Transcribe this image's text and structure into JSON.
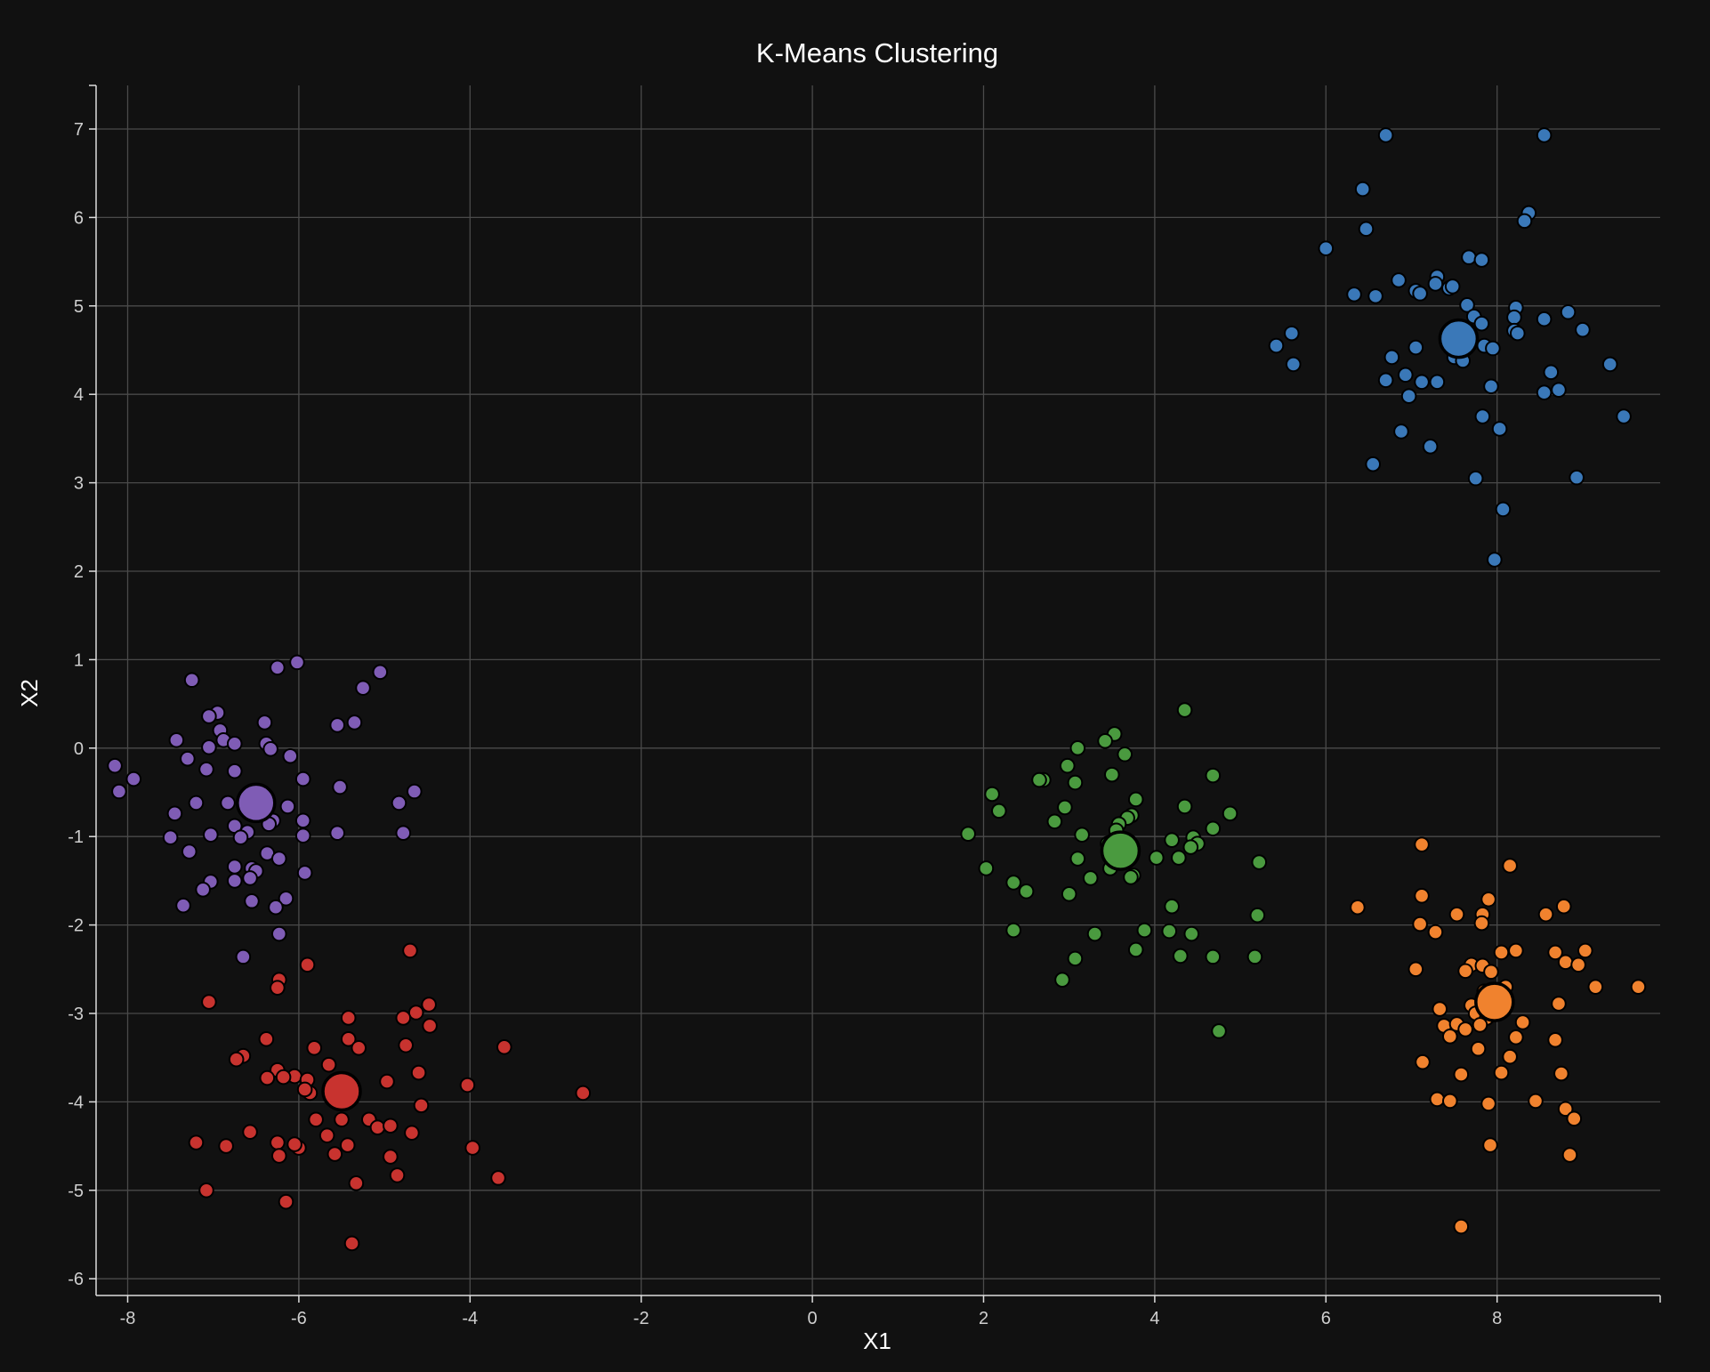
{
  "chart_data": {
    "type": "scatter",
    "title": "K-Means Clustering",
    "xlabel": "X1",
    "ylabel": "X2",
    "xlim": [
      -8.35,
      9.85
    ],
    "ylim": [
      -6.2,
      7.5
    ],
    "xticks": [
      -8,
      -6,
      -4,
      -2,
      0,
      2,
      4,
      6,
      8
    ],
    "yticks": [
      -6,
      -5,
      -4,
      -3,
      -2,
      -1,
      0,
      1,
      2,
      3,
      4,
      5,
      6,
      7
    ],
    "grid": true,
    "legend": "none",
    "clusters": [
      {
        "color": "#3a78b8",
        "centroid": [
          7.55,
          4.63
        ],
        "points": [
          [
            6.7,
            6.93
          ],
          [
            8.55,
            6.93
          ],
          [
            6.43,
            6.32
          ],
          [
            6.47,
            5.87
          ],
          [
            8.37,
            6.05
          ],
          [
            8.32,
            5.96
          ],
          [
            6.0,
            5.65
          ],
          [
            7.67,
            5.55
          ],
          [
            7.82,
            5.52
          ],
          [
            6.33,
            5.13
          ],
          [
            6.58,
            5.11
          ],
          [
            6.85,
            5.29
          ],
          [
            7.05,
            5.17
          ],
          [
            7.1,
            5.14
          ],
          [
            7.3,
            5.33
          ],
          [
            7.28,
            5.25
          ],
          [
            7.44,
            5.2
          ],
          [
            7.48,
            5.22
          ],
          [
            7.65,
            5.01
          ],
          [
            7.73,
            4.88
          ],
          [
            7.82,
            4.8
          ],
          [
            8.22,
            4.98
          ],
          [
            8.2,
            4.87
          ],
          [
            8.55,
            4.85
          ],
          [
            8.83,
            4.93
          ],
          [
            9.0,
            4.73
          ],
          [
            5.42,
            4.55
          ],
          [
            5.6,
            4.69
          ],
          [
            5.62,
            4.34
          ],
          [
            6.77,
            4.42
          ],
          [
            7.05,
            4.53
          ],
          [
            6.93,
            4.22
          ],
          [
            6.7,
            4.16
          ],
          [
            7.12,
            4.14
          ],
          [
            7.3,
            4.14
          ],
          [
            7.5,
            4.42
          ],
          [
            7.6,
            4.38
          ],
          [
            7.85,
            4.55
          ],
          [
            7.95,
            4.52
          ],
          [
            8.2,
            4.72
          ],
          [
            8.24,
            4.69
          ],
          [
            8.63,
            4.25
          ],
          [
            9.32,
            4.34
          ],
          [
            6.97,
            3.98
          ],
          [
            7.93,
            4.09
          ],
          [
            8.55,
            4.02
          ],
          [
            8.72,
            4.05
          ],
          [
            6.88,
            3.58
          ],
          [
            7.83,
            3.75
          ],
          [
            8.03,
            3.61
          ],
          [
            9.48,
            3.75
          ],
          [
            7.22,
            3.41
          ],
          [
            6.55,
            3.21
          ],
          [
            7.75,
            3.05
          ],
          [
            8.93,
            3.06
          ],
          [
            8.07,
            2.7
          ],
          [
            7.97,
            2.13
          ]
        ]
      },
      {
        "color": "#7f5cb5",
        "centroid": [
          -6.5,
          -0.62
        ],
        "points": [
          [
            -6.02,
            0.97
          ],
          [
            -6.25,
            0.91
          ],
          [
            -5.05,
            0.86
          ],
          [
            -5.25,
            0.68
          ],
          [
            -7.25,
            0.77
          ],
          [
            -6.95,
            0.4
          ],
          [
            -7.05,
            0.36
          ],
          [
            -6.4,
            0.29
          ],
          [
            -5.55,
            0.26
          ],
          [
            -5.35,
            0.29
          ],
          [
            -7.43,
            0.09
          ],
          [
            -6.92,
            0.2
          ],
          [
            -6.88,
            0.09
          ],
          [
            -6.75,
            0.05
          ],
          [
            -7.05,
            0.01
          ],
          [
            -6.38,
            0.05
          ],
          [
            -6.33,
            -0.01
          ],
          [
            -6.1,
            -0.09
          ],
          [
            -7.3,
            -0.12
          ],
          [
            -8.15,
            -0.2
          ],
          [
            -7.08,
            -0.24
          ],
          [
            -7.93,
            -0.35
          ],
          [
            -6.75,
            -0.26
          ],
          [
            -5.95,
            -0.35
          ],
          [
            -5.52,
            -0.44
          ],
          [
            -8.1,
            -0.49
          ],
          [
            -7.2,
            -0.62
          ],
          [
            -6.83,
            -0.62
          ],
          [
            -6.13,
            -0.66
          ],
          [
            -4.83,
            -0.62
          ],
          [
            -4.65,
            -0.49
          ],
          [
            -7.45,
            -0.74
          ],
          [
            -6.3,
            -0.82
          ],
          [
            -5.95,
            -0.82
          ],
          [
            -6.75,
            -0.88
          ],
          [
            -6.35,
            -0.86
          ],
          [
            -6.6,
            -0.95
          ],
          [
            -6.68,
            -1.01
          ],
          [
            -7.03,
            -0.98
          ],
          [
            -7.5,
            -1.01
          ],
          [
            -5.95,
            -0.99
          ],
          [
            -5.55,
            -0.96
          ],
          [
            -4.78,
            -0.96
          ],
          [
            -7.28,
            -1.17
          ],
          [
            -6.37,
            -1.19
          ],
          [
            -6.23,
            -1.25
          ],
          [
            -6.75,
            -1.34
          ],
          [
            -6.55,
            -1.36
          ],
          [
            -6.5,
            -1.39
          ],
          [
            -6.57,
            -1.47
          ],
          [
            -5.93,
            -1.41
          ],
          [
            -7.03,
            -1.51
          ],
          [
            -6.75,
            -1.5
          ],
          [
            -7.12,
            -1.6
          ],
          [
            -6.15,
            -1.7
          ],
          [
            -6.55,
            -1.73
          ],
          [
            -6.27,
            -1.8
          ],
          [
            -7.35,
            -1.78
          ],
          [
            -6.23,
            -2.1
          ],
          [
            -6.65,
            -2.36
          ]
        ]
      },
      {
        "color": "#c8332f",
        "centroid": [
          -5.5,
          -3.88
        ],
        "points": [
          [
            -4.7,
            -2.29
          ],
          [
            -5.9,
            -2.45
          ],
          [
            -6.23,
            -2.62
          ],
          [
            -6.25,
            -2.71
          ],
          [
            -7.05,
            -2.87
          ],
          [
            -4.48,
            -2.9
          ],
          [
            -4.63,
            -2.99
          ],
          [
            -4.78,
            -3.05
          ],
          [
            -5.42,
            -3.05
          ],
          [
            -4.47,
            -3.14
          ],
          [
            -6.38,
            -3.29
          ],
          [
            -5.42,
            -3.29
          ],
          [
            -5.3,
            -3.39
          ],
          [
            -5.82,
            -3.39
          ],
          [
            -3.6,
            -3.38
          ],
          [
            -4.75,
            -3.36
          ],
          [
            -6.65,
            -3.48
          ],
          [
            -6.73,
            -3.52
          ],
          [
            -5.65,
            -3.58
          ],
          [
            -6.25,
            -3.64
          ],
          [
            -6.05,
            -3.71
          ],
          [
            -6.18,
            -3.72
          ],
          [
            -6.37,
            -3.73
          ],
          [
            -5.9,
            -3.75
          ],
          [
            -4.6,
            -3.67
          ],
          [
            -4.97,
            -3.77
          ],
          [
            -4.03,
            -3.81
          ],
          [
            -2.68,
            -3.9
          ],
          [
            -5.87,
            -3.9
          ],
          [
            -5.93,
            -3.86
          ],
          [
            -4.57,
            -4.04
          ],
          [
            -5.8,
            -4.2
          ],
          [
            -5.5,
            -4.2
          ],
          [
            -5.18,
            -4.2
          ],
          [
            -5.08,
            -4.29
          ],
          [
            -4.93,
            -4.27
          ],
          [
            -4.68,
            -4.35
          ],
          [
            -6.57,
            -4.34
          ],
          [
            -5.67,
            -4.38
          ],
          [
            -7.2,
            -4.46
          ],
          [
            -6.85,
            -4.5
          ],
          [
            -6.25,
            -4.46
          ],
          [
            -6.0,
            -4.52
          ],
          [
            -6.05,
            -4.48
          ],
          [
            -5.43,
            -4.49
          ],
          [
            -3.97,
            -4.52
          ],
          [
            -5.58,
            -4.59
          ],
          [
            -4.93,
            -4.62
          ],
          [
            -6.23,
            -4.61
          ],
          [
            -4.85,
            -4.83
          ],
          [
            -3.67,
            -4.86
          ],
          [
            -5.33,
            -4.92
          ],
          [
            -7.08,
            -5.0
          ],
          [
            -6.15,
            -5.13
          ],
          [
            -5.38,
            -5.6
          ]
        ]
      },
      {
        "color": "#4a9a3f",
        "centroid": [
          3.6,
          -1.16
        ],
        "points": [
          [
            4.35,
            0.43
          ],
          [
            3.53,
            0.16
          ],
          [
            3.42,
            0.08
          ],
          [
            3.1,
            0.0
          ],
          [
            3.65,
            -0.07
          ],
          [
            2.98,
            -0.2
          ],
          [
            3.5,
            -0.3
          ],
          [
            4.68,
            -0.31
          ],
          [
            2.7,
            -0.36
          ],
          [
            2.65,
            -0.36
          ],
          [
            3.07,
            -0.39
          ],
          [
            2.1,
            -0.52
          ],
          [
            3.78,
            -0.58
          ],
          [
            2.95,
            -0.67
          ],
          [
            4.35,
            -0.66
          ],
          [
            2.18,
            -0.71
          ],
          [
            4.88,
            -0.74
          ],
          [
            3.73,
            -0.76
          ],
          [
            3.68,
            -0.79
          ],
          [
            2.83,
            -0.83
          ],
          [
            3.58,
            -0.86
          ],
          [
            4.68,
            -0.91
          ],
          [
            3.55,
            -0.93
          ],
          [
            3.15,
            -0.98
          ],
          [
            1.82,
            -0.97
          ],
          [
            4.45,
            -1.01
          ],
          [
            4.2,
            -1.04
          ],
          [
            4.5,
            -1.08
          ],
          [
            3.45,
            -1.08
          ],
          [
            4.42,
            -1.12
          ],
          [
            4.02,
            -1.24
          ],
          [
            4.28,
            -1.24
          ],
          [
            3.1,
            -1.25
          ],
          [
            5.22,
            -1.29
          ],
          [
            2.03,
            -1.36
          ],
          [
            3.48,
            -1.36
          ],
          [
            3.75,
            -1.44
          ],
          [
            3.72,
            -1.46
          ],
          [
            3.25,
            -1.47
          ],
          [
            2.35,
            -1.52
          ],
          [
            2.5,
            -1.62
          ],
          [
            3.0,
            -1.65
          ],
          [
            4.2,
            -1.79
          ],
          [
            5.2,
            -1.89
          ],
          [
            2.35,
            -2.06
          ],
          [
            3.3,
            -2.1
          ],
          [
            3.88,
            -2.06
          ],
          [
            4.17,
            -2.07
          ],
          [
            4.43,
            -2.1
          ],
          [
            3.78,
            -2.28
          ],
          [
            4.3,
            -2.35
          ],
          [
            4.68,
            -2.36
          ],
          [
            5.17,
            -2.36
          ],
          [
            3.07,
            -2.38
          ],
          [
            2.92,
            -2.62
          ],
          [
            4.75,
            -3.2
          ]
        ]
      },
      {
        "color": "#f0822e",
        "centroid": [
          7.97,
          -2.87
        ],
        "points": [
          [
            7.12,
            -1.09
          ],
          [
            8.15,
            -1.33
          ],
          [
            6.37,
            -1.8
          ],
          [
            7.12,
            -1.67
          ],
          [
            7.9,
            -1.71
          ],
          [
            8.78,
            -1.79
          ],
          [
            7.53,
            -1.88
          ],
          [
            7.83,
            -1.88
          ],
          [
            8.57,
            -1.88
          ],
          [
            7.1,
            -1.99
          ],
          [
            7.82,
            -1.98
          ],
          [
            7.28,
            -2.08
          ],
          [
            8.22,
            -2.29
          ],
          [
            8.05,
            -2.31
          ],
          [
            8.68,
            -2.31
          ],
          [
            9.03,
            -2.29
          ],
          [
            7.7,
            -2.45
          ],
          [
            7.83,
            -2.46
          ],
          [
            8.8,
            -2.42
          ],
          [
            8.95,
            -2.45
          ],
          [
            7.05,
            -2.5
          ],
          [
            7.63,
            -2.52
          ],
          [
            7.93,
            -2.53
          ],
          [
            9.65,
            -2.7
          ],
          [
            9.15,
            -2.7
          ],
          [
            8.1,
            -2.7
          ],
          [
            7.85,
            -2.75
          ],
          [
            7.7,
            -2.91
          ],
          [
            8.72,
            -2.89
          ],
          [
            7.33,
            -2.95
          ],
          [
            7.75,
            -3.0
          ],
          [
            7.88,
            -3.05
          ],
          [
            8.3,
            -3.1
          ],
          [
            7.8,
            -3.13
          ],
          [
            7.38,
            -3.14
          ],
          [
            7.53,
            -3.12
          ],
          [
            7.63,
            -3.18
          ],
          [
            7.45,
            -3.26
          ],
          [
            8.22,
            -3.27
          ],
          [
            8.68,
            -3.3
          ],
          [
            7.78,
            -3.4
          ],
          [
            8.15,
            -3.49
          ],
          [
            7.13,
            -3.55
          ],
          [
            8.05,
            -3.67
          ],
          [
            8.75,
            -3.68
          ],
          [
            7.58,
            -3.69
          ],
          [
            7.3,
            -3.97
          ],
          [
            7.45,
            -3.99
          ],
          [
            7.9,
            -4.02
          ],
          [
            8.45,
            -3.99
          ],
          [
            8.8,
            -4.08
          ],
          [
            8.9,
            -4.19
          ],
          [
            7.92,
            -4.49
          ],
          [
            8.85,
            -4.6
          ],
          [
            7.58,
            -5.41
          ]
        ]
      }
    ]
  }
}
